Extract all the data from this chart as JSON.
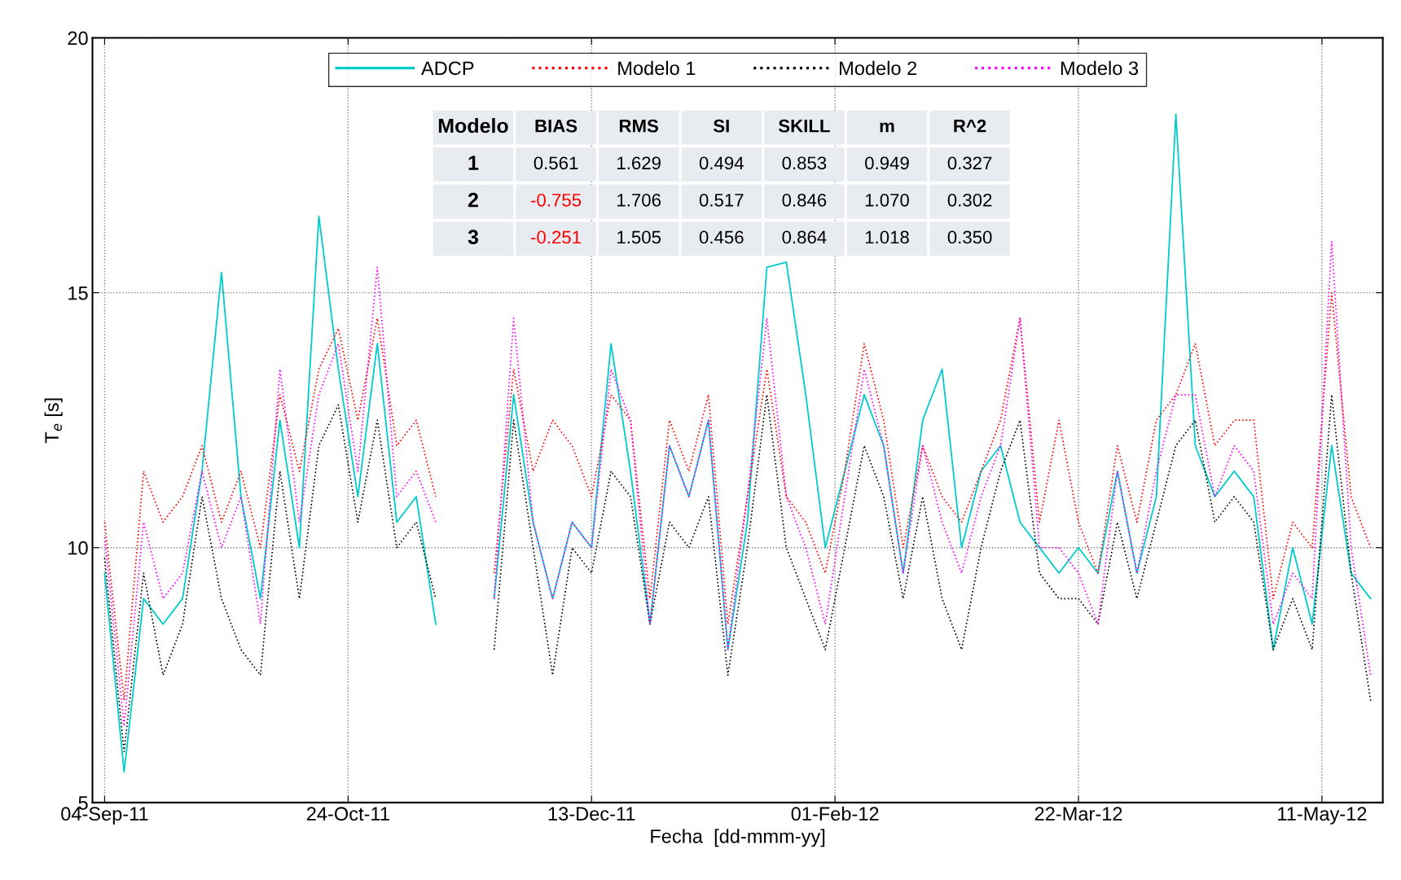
{
  "chart_data": {
    "type": "line",
    "xlabel": "Fecha  [dd-mmm-yy]",
    "ylabel": "T$_{e}$ [s]",
    "x": [
      "2011-09-04",
      "2011-09-08",
      "2011-09-12",
      "2011-09-16",
      "2011-09-20",
      "2011-09-24",
      "2011-09-28",
      "2011-10-02",
      "2011-10-06",
      "2011-10-10",
      "2011-10-14",
      "2011-10-18",
      "2011-10-22",
      "2011-10-26",
      "2011-10-30",
      "2011-11-03",
      "2011-11-07",
      "2011-11-11",
      "2011-11-15",
      "2011-11-19",
      "2011-11-23",
      "2011-11-27",
      "2011-12-01",
      "2011-12-05",
      "2011-12-09",
      "2011-12-13",
      "2011-12-17",
      "2011-12-21",
      "2011-12-25",
      "2011-12-29",
      "2012-01-02",
      "2012-01-06",
      "2012-01-10",
      "2012-01-14",
      "2012-01-18",
      "2012-01-22",
      "2012-01-26",
      "2012-01-30",
      "2012-02-03",
      "2012-02-07",
      "2012-02-11",
      "2012-02-15",
      "2012-02-19",
      "2012-02-23",
      "2012-02-27",
      "2012-03-02",
      "2012-03-06",
      "2012-03-10",
      "2012-03-14",
      "2012-03-18",
      "2012-03-22",
      "2012-03-26",
      "2012-03-30",
      "2012-04-03",
      "2012-04-07",
      "2012-04-11",
      "2012-04-15",
      "2012-04-19",
      "2012-04-23",
      "2012-04-27",
      "2012-05-01",
      "2012-05-05",
      "2012-05-09",
      "2012-05-13",
      "2012-05-17",
      "2012-05-21"
    ],
    "series": [
      {
        "name": "ADCP",
        "color": "#00cccc",
        "line_style": "solid",
        "values": [
          9.5,
          5.6,
          9.0,
          8.5,
          9.0,
          11.5,
          15.4,
          11.0,
          9.0,
          12.5,
          10.0,
          16.5,
          13.5,
          11.0,
          14.0,
          10.5,
          11.0,
          8.5,
          null,
          null,
          9.0,
          13.0,
          10.5,
          9.0,
          10.5,
          10.0,
          14.0,
          11.5,
          8.5,
          12.0,
          11.0,
          12.5,
          8.0,
          10.5,
          15.5,
          15.6,
          13.0,
          10.0,
          11.5,
          13.0,
          12.0,
          9.5,
          12.5,
          13.5,
          10.0,
          11.5,
          12.0,
          10.5,
          10.0,
          9.5,
          10.0,
          9.5,
          11.5,
          9.5,
          11.0,
          18.5,
          12.0,
          11.0,
          11.5,
          11.0,
          8.0,
          10.0,
          8.5,
          12.0,
          9.5,
          9.0
        ]
      },
      {
        "name": "Modelo 1",
        "color": "#ff0000",
        "line_style": "dotted",
        "values": [
          10.5,
          7.0,
          11.5,
          10.5,
          11.0,
          12.0,
          10.5,
          11.5,
          10.0,
          13.0,
          11.5,
          13.5,
          14.3,
          12.5,
          14.5,
          12.0,
          12.5,
          11.0,
          null,
          null,
          9.5,
          13.5,
          11.5,
          12.5,
          12.0,
          11.0,
          13.0,
          12.5,
          9.0,
          12.5,
          11.5,
          13.0,
          8.5,
          11.0,
          13.5,
          11.0,
          10.5,
          9.5,
          11.5,
          14.0,
          12.5,
          10.0,
          12.0,
          11.0,
          10.5,
          11.5,
          12.5,
          14.5,
          10.5,
          12.5,
          10.5,
          9.5,
          12.0,
          10.5,
          12.5,
          13.0,
          14.0,
          12.0,
          12.5,
          12.5,
          9.0,
          10.5,
          10.0,
          15.0,
          11.0,
          10.0
        ]
      },
      {
        "name": "Modelo 2",
        "color": "#000000",
        "line_style": "dotted",
        "values": [
          9.8,
          6.0,
          9.5,
          7.5,
          8.5,
          11.0,
          9.0,
          8.0,
          7.5,
          11.5,
          9.0,
          12.0,
          12.8,
          10.5,
          12.5,
          10.0,
          10.5,
          9.0,
          null,
          null,
          8.0,
          12.5,
          10.0,
          7.5,
          10.0,
          9.5,
          11.5,
          11.0,
          8.5,
          10.5,
          10.0,
          11.0,
          7.5,
          10.0,
          13.0,
          10.0,
          9.0,
          8.0,
          10.0,
          12.0,
          11.0,
          9.0,
          11.0,
          9.0,
          8.0,
          10.0,
          11.5,
          12.5,
          9.5,
          9.0,
          9.0,
          8.5,
          10.5,
          9.0,
          10.5,
          12.0,
          12.5,
          10.5,
          11.0,
          10.5,
          8.0,
          9.0,
          8.0,
          13.0,
          9.5,
          7.0
        ]
      },
      {
        "name": "Modelo 3",
        "color": "#ff00ff",
        "line_style": "dotted",
        "values": [
          10.2,
          6.5,
          10.5,
          9.0,
          9.5,
          11.5,
          10.0,
          11.0,
          8.5,
          13.5,
          10.5,
          13.0,
          14.0,
          11.5,
          15.5,
          11.0,
          11.5,
          10.5,
          null,
          null,
          9.0,
          14.5,
          10.5,
          9.0,
          10.5,
          10.0,
          13.5,
          12.5,
          8.5,
          12.0,
          11.0,
          12.5,
          8.0,
          11.0,
          14.5,
          11.0,
          10.0,
          8.5,
          11.0,
          13.5,
          12.0,
          9.5,
          12.0,
          10.5,
          9.5,
          11.0,
          12.0,
          14.5,
          10.0,
          10.0,
          9.5,
          8.5,
          11.5,
          9.5,
          11.5,
          13.0,
          13.0,
          11.0,
          12.0,
          11.5,
          8.5,
          9.5,
          9.0,
          16.0,
          10.0,
          7.5
        ]
      }
    ],
    "xlim": [
      "2011-09-01T12:00",
      "2012-05-23T12:00"
    ],
    "xticks": [
      {
        "value": "2011-09-04",
        "label": "04-Sep-11"
      },
      {
        "value": "2011-10-24",
        "label": "24-Oct-11"
      },
      {
        "value": "2011-12-13",
        "label": "13-Dec-11"
      },
      {
        "value": "2012-02-01",
        "label": "01-Feb-12"
      },
      {
        "value": "2012-03-22",
        "label": "22-Mar-12"
      },
      {
        "value": "2012-05-11",
        "label": "11-May-12"
      }
    ],
    "ylim": [
      5,
      20
    ],
    "yticks": [
      5,
      10,
      15,
      20
    ],
    "grid": true,
    "legend": "top",
    "annotations": [
      "Modelo",
      "BIAS",
      "RMS",
      "SI",
      "SKILL",
      "m",
      "R^2",
      "1",
      "0.561",
      "1.629",
      "0.494",
      "0.853",
      "0.949",
      "0.327",
      "2",
      "-0.755",
      "1.706",
      "0.517",
      "0.846",
      "1.070",
      "0.302",
      "3",
      "-0.251",
      "1.505",
      "0.456",
      "0.864",
      "1.018",
      "0.350"
    ]
  }
}
